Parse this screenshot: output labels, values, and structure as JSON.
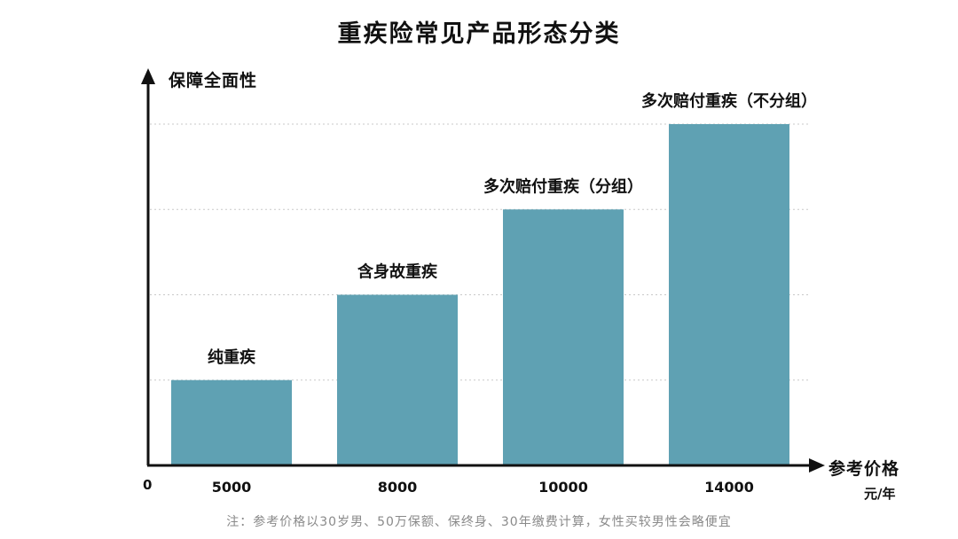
{
  "chart_data": {
    "type": "bar",
    "title": "重疾险常见产品形态分类",
    "ylabel": "保障全面性",
    "xlabel": "参考价格",
    "x_unit": "元/年",
    "origin_label": "0",
    "categories": [
      "5000",
      "8000",
      "10000",
      "14000"
    ],
    "series": [
      {
        "values": [
          1,
          2,
          3,
          4
        ],
        "bar_labels": [
          "纯重疾",
          "含身故重疾",
          "多次赔付重疾（分组）",
          "多次赔付重疾（不分组）"
        ]
      }
    ],
    "ylim": [
      0,
      4
    ],
    "grid": true,
    "bar_color": "#5fa1b3",
    "note": "注：参考价格以30岁男、50万保额、保终身、30年缴费计算，女性买较男性会略便宜"
  }
}
